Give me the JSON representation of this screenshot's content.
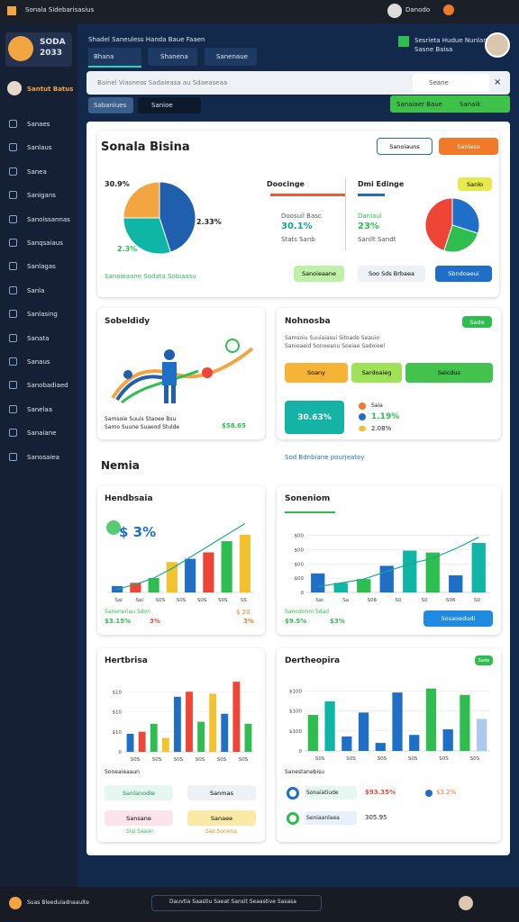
{
  "topbar": {
    "title": "Sonala Sidebarisasius",
    "user": "Danodo"
  },
  "sidebar": {
    "brand": [
      "SODA",
      "2033"
    ],
    "user": "Santut Batus",
    "items": [
      "Sanaes",
      "Sanlaus",
      "Sanea",
      "Sanigans",
      "Sanoissannas",
      "Sanqsaiaus",
      "Sanlagas",
      "Sanla",
      "Sanlasing",
      "Sanata",
      "Sanaus",
      "Sanobadiaed",
      "Sanelaa",
      "Sanaiane",
      "Sanosaiea"
    ]
  },
  "header": {
    "breadcrumb": "Shadel Saneuless  Handa  Baue  Faaen",
    "tabs": [
      "Bhana",
      "Shanena",
      "Sanenaue"
    ],
    "profile_name": "Sesrieta Hudue Nunlan",
    "profile_sub": "Sasne Baisa",
    "search": "Bainel Viasness Sadaieasa au Sdaeaseaa",
    "search_right": "Seane",
    "chips": [
      "Sabaniues",
      "Sanioe"
    ],
    "action": [
      "Sanaiaer Baue",
      "Sanaik"
    ]
  },
  "overview": {
    "title": "Sonala Bisina",
    "dropdown": "Sanoiauns",
    "button": "Sanlese",
    "pie1": {
      "values": [
        45,
        30,
        25
      ],
      "colors": [
        "#1f5fae",
        "#0fb5a5",
        "#f2a540"
      ],
      "labels": [
        "30.9%",
        "2.33%",
        "2.3%"
      ]
    },
    "legend": "Sanoieaane Sodata Sobiaasu",
    "mid": {
      "title": "Doocinge",
      "label": "Doosuil Basc",
      "value": "30.1%",
      "sub": "Stats Sanb"
    },
    "right": {
      "title": "Dmi Edinge",
      "chip": "Sanlo",
      "label": "Danlaul",
      "value": "23%",
      "sub": "Sanllt Sandt"
    },
    "pie2": {
      "values": [
        30,
        25,
        45
      ],
      "colors": [
        "#1f6fc8",
        "#2ebd4f",
        "#ef4536"
      ]
    },
    "buttons": [
      "Sanoieaane",
      "Soo Sds Brbaea",
      "Sbndoaeui"
    ]
  },
  "activity": {
    "title": "Sobeldidy",
    "lines": [
      "Samsoie Suuis Staoee Bsu",
      "Samo Suune Suaeod Stulde"
    ],
    "value": "$58.65"
  },
  "notes": {
    "title": "Nohnosba",
    "chip": "Sade",
    "lines": [
      "Samsoiu Suuiaiasui Sitoade Seauio",
      "Sanioaeid Sonoeanu Soeiae Sadoieel"
    ],
    "buttons": [
      "Soany",
      "Sardoaieg",
      "Seicdus"
    ],
    "box": "30.63%",
    "stat_label": "Saia",
    "stats": [
      "1.19%",
      "2.08%"
    ]
  },
  "section": {
    "title": "Nemia",
    "link": "Sod Bdnbiane pourjeatoy"
  },
  "charts": [
    {
      "title": "Hendbsaia",
      "values": [
        8,
        12,
        18,
        38,
        42,
        50,
        64,
        72
      ],
      "colors": [
        "#1f6fc8",
        "#ef4536",
        "#2ebd4f",
        "#f2c230"
      ],
      "line": [
        4,
        10,
        18,
        30,
        44,
        58,
        72,
        86
      ],
      "ylim": [
        0,
        100
      ],
      "xlabels": [
        "Sal",
        "Sal",
        "S0S",
        "S0S",
        "S0S",
        "S0S",
        "SS"
      ],
      "badge": "$ 3%",
      "foot": "Saneneriau Sdvn",
      "stats": [
        "$3.15%",
        "3%"
      ],
      "right": [
        "$ 20",
        "3%"
      ]
    },
    {
      "title": "Soneniom",
      "values": [
        20,
        10,
        14,
        28,
        44,
        42,
        18,
        52
      ],
      "colors": [
        "#1f6fc8",
        "#0fb5a5",
        "#2ebd4f"
      ],
      "line": [
        6,
        10,
        14,
        22,
        30,
        36,
        46,
        58
      ],
      "ylim": [
        0,
        70
      ],
      "yticks": [
        {
          "value": 60,
          "label": "$00"
        },
        {
          "value": 45,
          "label": "$00"
        },
        {
          "value": 30,
          "label": "$00"
        },
        {
          "value": 15,
          "label": "$00"
        },
        0
      ],
      "xlabels": [
        "Sal",
        "Sa",
        "S06",
        "S0",
        "S0",
        "S06",
        "S0"
      ],
      "foot": "Sanodonm Sdad",
      "stats": [
        "$9.5%",
        "$3%"
      ],
      "button": "Sosaoedudi"
    },
    {
      "title": "Hertbrisa",
      "values": [
        18,
        20,
        28,
        14,
        55,
        60,
        30,
        58,
        38,
        70,
        28
      ],
      "colors": [
        "#1f6fc8",
        "#ef4536",
        "#2ebd4f",
        "#f2c230"
      ],
      "ylim": [
        0,
        80
      ],
      "yticks": [
        {
          "value": 60,
          "label": "$10"
        },
        {
          "value": 40,
          "label": "$10"
        },
        {
          "value": 20,
          "label": "$10"
        },
        0
      ],
      "xlabels": [
        "S0S",
        "S0S",
        "S0S",
        "S0S",
        "S0S",
        "S0S"
      ],
      "foot": "Soneaieaaun",
      "list": [
        "Sanlanodie",
        "Sanmas",
        "Sansane",
        "Sanaee"
      ],
      "subs": [
        "Sisi Saaan",
        "Sas Sonena"
      ]
    },
    {
      "title": "Dertheopira",
      "chip": "Sade",
      "values": [
        45,
        62,
        18,
        48,
        10,
        73,
        20,
        78,
        27,
        70,
        40
      ],
      "colors": [
        "#2ebd4f",
        "#0fb5a5",
        "#1f6fc8",
        "#1f6fc8",
        "#1f6fc8",
        "#1f6fc8",
        "#1f6fc8",
        "#2ebd4f",
        "#1f6fc8",
        "#2ebd4f",
        "#a9c9ee"
      ],
      "ylim": [
        0,
        90
      ],
      "yticks": [
        {
          "value": 75,
          "label": "$100"
        },
        {
          "value": 50,
          "label": "$100"
        },
        {
          "value": 25,
          "label": "$100"
        },
        0
      ],
      "xlabels": [
        "S0S",
        "S0S",
        "S0S",
        "S0S",
        "S0S",
        "S0S"
      ],
      "foot": "Sanestanebisu",
      "rows": [
        [
          "Sonaiatiude",
          "$93.35%",
          "$3.2%"
        ],
        [
          "Seniaanlaea",
          "305.95"
        ]
      ]
    }
  ],
  "bottombar": {
    "left": "Suas Bleeduiadnaaulte",
    "center": "Dauvtia Saastiu Saeat Sansit Seaastive Sasasa"
  }
}
